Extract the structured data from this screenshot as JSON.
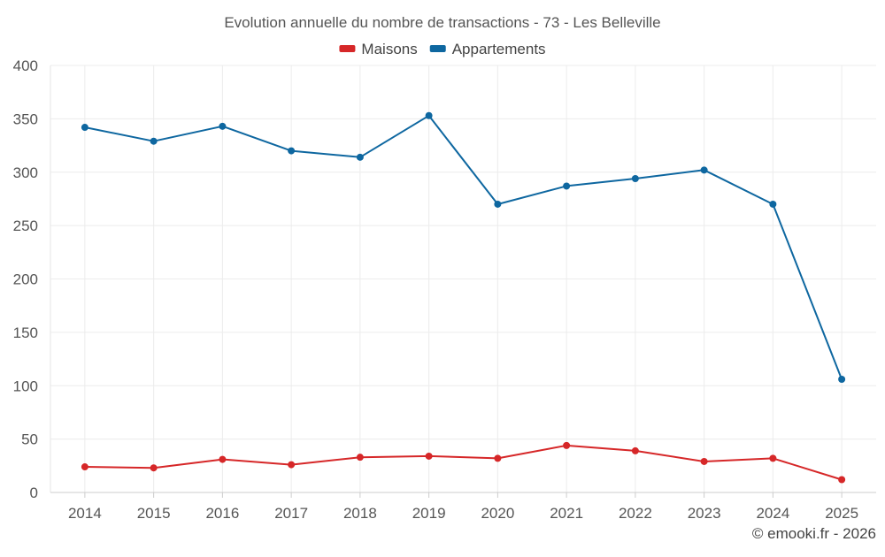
{
  "chart_data": {
    "type": "line",
    "title": "Evolution annuelle du nombre de transactions - 73 - Les Belleville",
    "categories": [
      "2014",
      "2015",
      "2016",
      "2017",
      "2018",
      "2019",
      "2020",
      "2021",
      "2022",
      "2023",
      "2024",
      "2025"
    ],
    "series": [
      {
        "name": "Maisons",
        "color": "#d62728",
        "values": [
          24,
          23,
          31,
          26,
          33,
          34,
          32,
          44,
          39,
          29,
          32,
          12
        ]
      },
      {
        "name": "Appartements",
        "color": "#0e67a0",
        "values": [
          342,
          329,
          343,
          320,
          314,
          353,
          270,
          287,
          294,
          302,
          270,
          106
        ]
      }
    ],
    "ylim": [
      0,
      400
    ],
    "yticks": [
      0,
      50,
      100,
      150,
      200,
      250,
      300,
      350,
      400
    ],
    "xlabel": "",
    "ylabel": "",
    "legend_position": "top-center",
    "grid": true
  },
  "footer": {
    "credit": "© emooki.fr - 2026"
  }
}
